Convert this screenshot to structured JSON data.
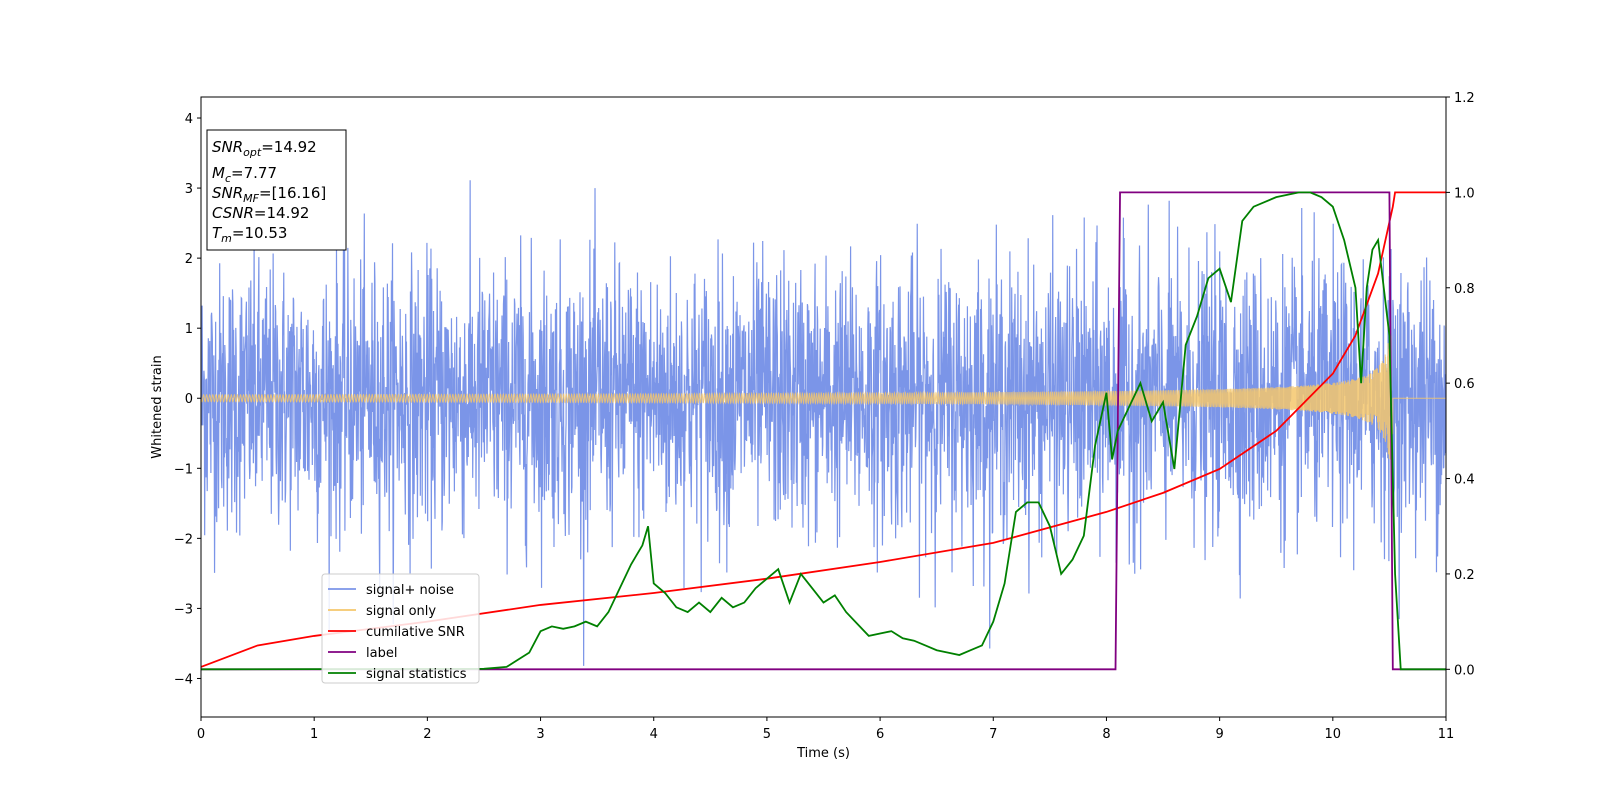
{
  "chart_data": {
    "type": "line",
    "xlabel": "Time (s)",
    "ylabel": "Whitened strain",
    "xlim": [
      0,
      11
    ],
    "ylim_left": [
      -4.55,
      4.3
    ],
    "ylim_right": [
      -0.1,
      1.2
    ],
    "x_ticks": [
      "0",
      "1",
      "2",
      "3",
      "4",
      "5",
      "6",
      "7",
      "8",
      "9",
      "10",
      "11"
    ],
    "y_left_ticks": [
      "4",
      "3",
      "2",
      "1",
      "0",
      "−1",
      "−2",
      "−3",
      "−4"
    ],
    "y_right_ticks": [
      "1.2",
      "1.0",
      "0.8",
      "0.6",
      "0.4",
      "0.2",
      "0.0"
    ],
    "grid": false,
    "legend_position": "lower-left",
    "annotation": {
      "snr_opt": {
        "sym": "SNR",
        "sub": "opt",
        "value": "=14.92"
      },
      "mc": {
        "sym": "M",
        "sub": "c",
        "value": "=7.77"
      },
      "snr_mf": {
        "sym": "SNR",
        "sub": "MF",
        "value": "=[16.16]"
      },
      "csnr": {
        "sym": "CSNR",
        "sub": "",
        "value": "=14.92"
      },
      "tm": {
        "sym": "T",
        "sub": "m",
        "value": "=10.53"
      }
    },
    "series": [
      {
        "name": "signal+ noise",
        "color": "#7b95e8",
        "axis": "left",
        "description_values": "noise, std ~1.0, spikes to about ±3.4"
      },
      {
        "name": "signal only",
        "color": "#f5c76c",
        "axis": "left",
        "chirp": {
          "start_amp": 0.05,
          "end_amp": 0.9,
          "merger_time": 10.53
        }
      },
      {
        "name": "cumilative SNR",
        "color": "#ff0000",
        "axis": "right",
        "x": [
          0,
          0.5,
          1,
          2,
          3,
          4,
          5,
          6,
          7,
          8,
          8.5,
          9,
          9.5,
          10,
          10.2,
          10.4,
          10.53,
          10.55,
          11
        ],
        "values": [
          0.005,
          0.05,
          0.07,
          0.1,
          0.135,
          0.16,
          0.19,
          0.225,
          0.265,
          0.33,
          0.37,
          0.42,
          0.5,
          0.62,
          0.7,
          0.83,
          0.97,
          1.0,
          1.0
        ]
      },
      {
        "name": "label",
        "color": "#800080",
        "axis": "right",
        "x": [
          0,
          8.08,
          8.12,
          10.5,
          10.53,
          11
        ],
        "values": [
          0,
          0,
          1,
          1,
          0,
          0
        ]
      },
      {
        "name": "signal statistics",
        "color": "#008000",
        "axis": "right",
        "x": [
          0,
          2.5,
          2.7,
          2.8,
          2.9,
          3.0,
          3.1,
          3.2,
          3.3,
          3.4,
          3.5,
          3.6,
          3.7,
          3.8,
          3.9,
          3.95,
          4.0,
          4.1,
          4.2,
          4.3,
          4.4,
          4.5,
          4.6,
          4.7,
          4.8,
          4.9,
          5.0,
          5.1,
          5.2,
          5.3,
          5.4,
          5.5,
          5.6,
          5.7,
          5.8,
          5.9,
          6.0,
          6.1,
          6.2,
          6.3,
          6.4,
          6.5,
          6.6,
          6.7,
          6.8,
          6.9,
          7.0,
          7.1,
          7.2,
          7.3,
          7.4,
          7.5,
          7.6,
          7.7,
          7.8,
          7.9,
          8.0,
          8.05,
          8.1,
          8.2,
          8.3,
          8.4,
          8.5,
          8.6,
          8.7,
          8.8,
          8.9,
          9.0,
          9.1,
          9.2,
          9.3,
          9.4,
          9.5,
          9.6,
          9.7,
          9.8,
          9.9,
          10.0,
          10.1,
          10.2,
          10.25,
          10.3,
          10.35,
          10.4,
          10.45,
          10.5,
          10.55,
          10.6,
          11
        ],
        "values": [
          0.0,
          0.001,
          0.005,
          0.02,
          0.035,
          0.08,
          0.09,
          0.085,
          0.09,
          0.1,
          0.09,
          0.12,
          0.17,
          0.22,
          0.26,
          0.3,
          0.18,
          0.16,
          0.13,
          0.12,
          0.14,
          0.12,
          0.15,
          0.13,
          0.14,
          0.17,
          0.19,
          0.21,
          0.14,
          0.2,
          0.17,
          0.14,
          0.155,
          0.12,
          0.095,
          0.07,
          0.075,
          0.08,
          0.065,
          0.06,
          0.05,
          0.04,
          0.035,
          0.03,
          0.04,
          0.05,
          0.1,
          0.18,
          0.33,
          0.35,
          0.35,
          0.3,
          0.2,
          0.23,
          0.28,
          0.47,
          0.58,
          0.44,
          0.5,
          0.55,
          0.6,
          0.52,
          0.56,
          0.42,
          0.68,
          0.74,
          0.82,
          0.84,
          0.77,
          0.94,
          0.97,
          0.98,
          0.99,
          0.995,
          1.0,
          1.0,
          0.99,
          0.97,
          0.9,
          0.8,
          0.6,
          0.8,
          0.88,
          0.9,
          0.8,
          0.7,
          0.2,
          0.0,
          0.0
        ]
      }
    ]
  }
}
